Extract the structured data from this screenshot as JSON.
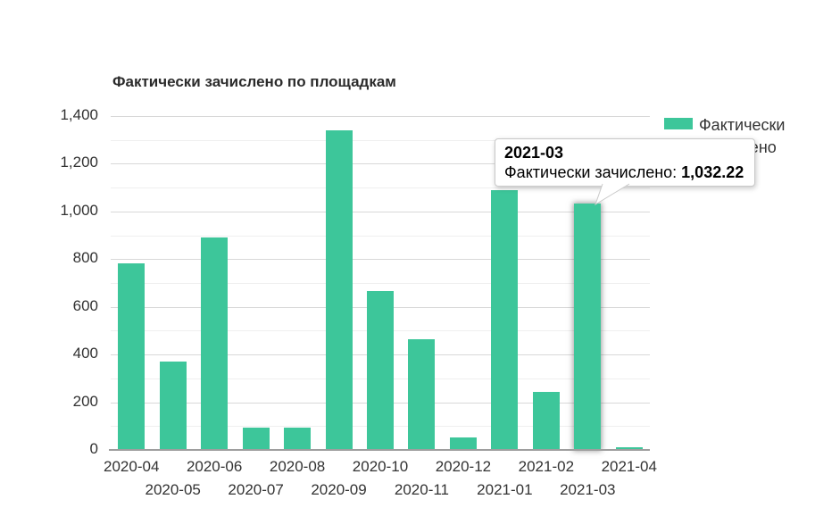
{
  "chart_data": {
    "type": "bar",
    "title": "Фактически зачислено по площадкам",
    "categories": [
      "2020-04",
      "2020-05",
      "2020-06",
      "2020-07",
      "2020-08",
      "2020-09",
      "2020-10",
      "2020-11",
      "2020-12",
      "2021-01",
      "2021-02",
      "2021-03",
      "2021-04"
    ],
    "series": [
      {
        "name": "Фактически зачислено",
        "values": [
          782,
          371,
          891,
          93,
          95,
          1340,
          668,
          466,
          51,
          1089,
          244,
          1032.22,
          10
        ]
      }
    ],
    "xlabel": "",
    "ylabel": "",
    "ylim": [
      0,
      1400
    ],
    "y_tick_step": 200,
    "y_minor_step": 100,
    "y_tick_labels": [
      "0",
      "200",
      "400",
      "600",
      "800",
      "1,000",
      "1,200",
      "1,400"
    ],
    "grid": true,
    "legend_position": "top-right",
    "x_labels_staggered": true
  },
  "legend": {
    "items": [
      {
        "label": "Фактически зачислено",
        "color": "#3dc69a"
      }
    ]
  },
  "tooltip": {
    "category": "2021-03",
    "label": "Фактически зачислено: ",
    "value": "1,032.22"
  },
  "colors": {
    "bar": "#3dc69a",
    "grid_major": "#d8d8d8",
    "grid_minor": "#efefef",
    "axis_line": "#9e9e9e",
    "text": "#333333",
    "tooltip_border": "#c9c9c9"
  }
}
